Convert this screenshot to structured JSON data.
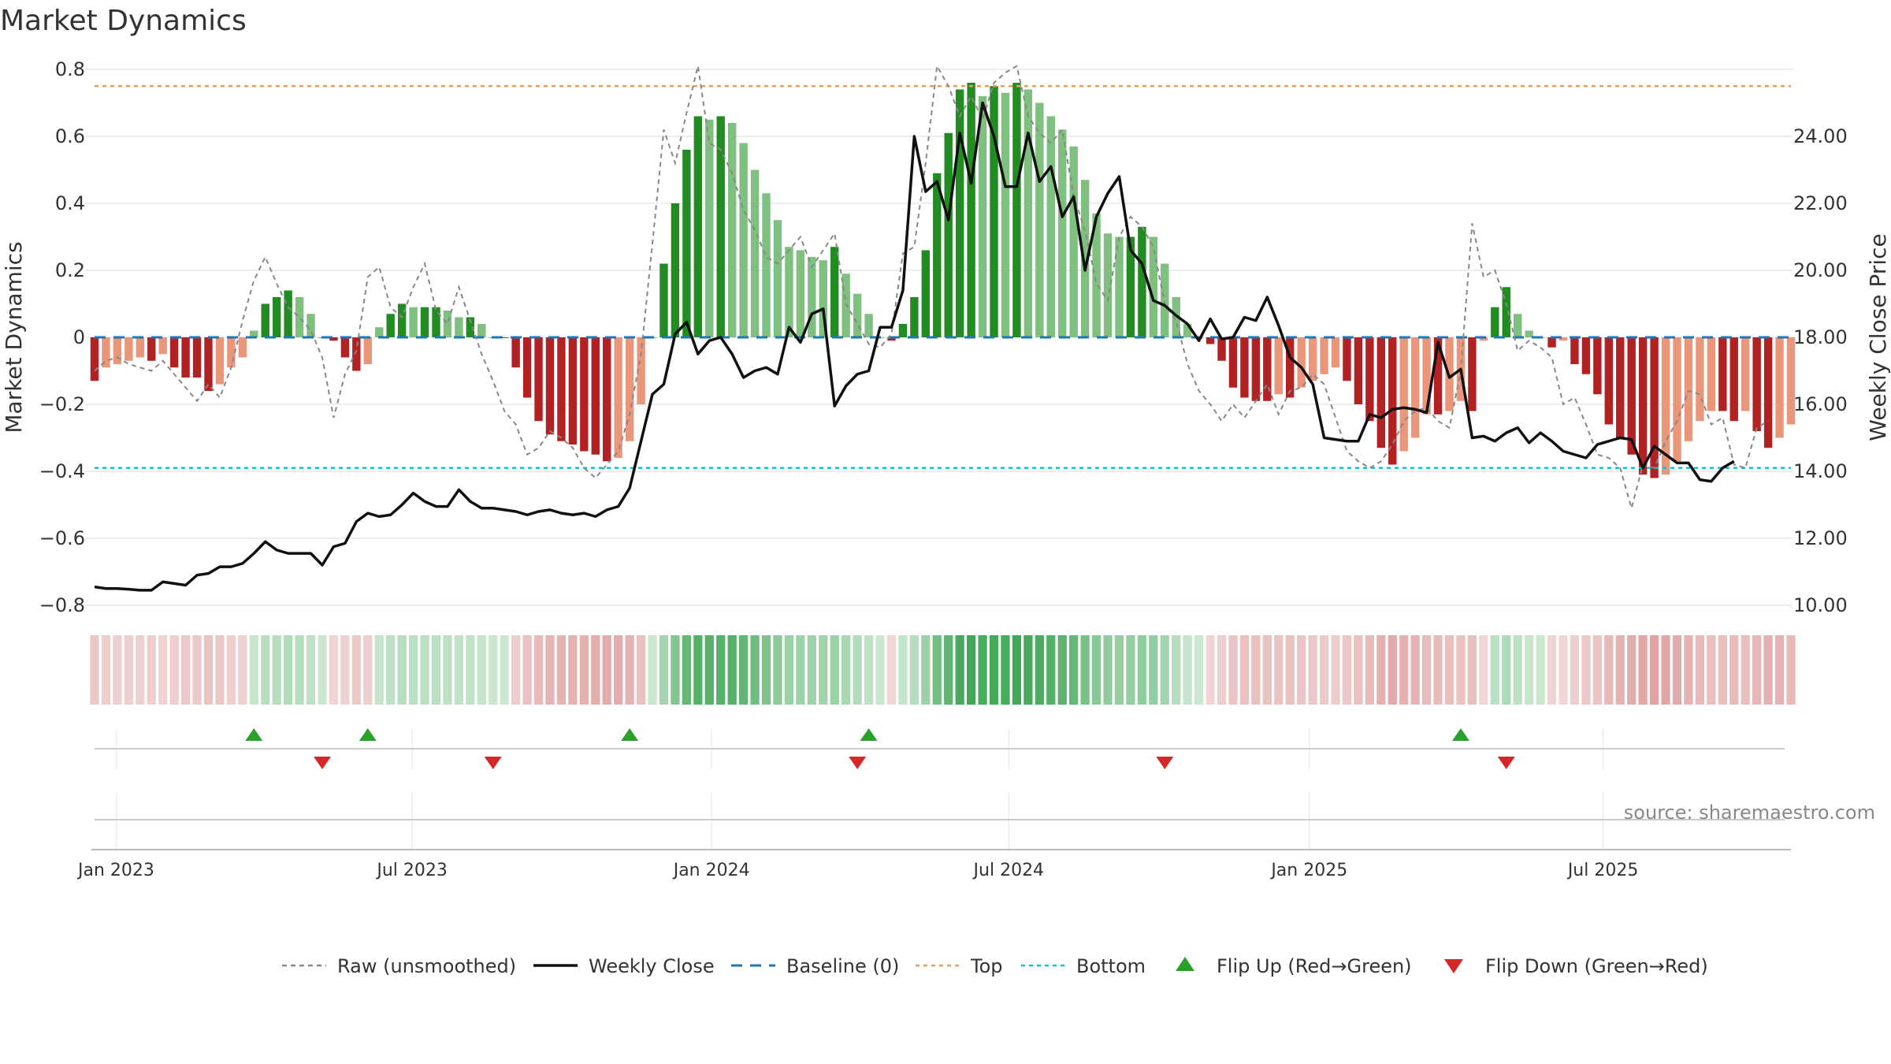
{
  "chart_data": {
    "type": "bar",
    "title": "Market Dynamics",
    "ylabel_left": "Market Dynamics",
    "ylabel_right": "Weekly Close Price",
    "ylim_left": [
      -0.8,
      0.8
    ],
    "ylim_right": [
      10,
      26
    ],
    "yticks_left": [
      -0.8,
      -0.6,
      -0.4,
      -0.2,
      0,
      0.2,
      0.4,
      0.6,
      0.8
    ],
    "ytick_labels_left": [
      "−0.8",
      "−0.6",
      "−0.4",
      "−0.2",
      "0",
      "0.2",
      "0.4",
      "0.6",
      "0.8"
    ],
    "yticks_right": [
      10,
      12,
      14,
      16,
      18,
      20,
      22,
      24
    ],
    "ytick_labels_right": [
      "10.00",
      "12.00",
      "14.00",
      "16.00",
      "18.00",
      "20.00",
      "22.00",
      "24.00"
    ],
    "x_start": "2022-12-19",
    "x_tick_labels": [
      "Jan 2023",
      "Jul 2023",
      "Jan 2024",
      "Jul 2024",
      "Jan 2025",
      "Jul 2025"
    ],
    "x_tick_weeks": [
      1.9,
      27.9,
      54.2,
      80.3,
      106.7,
      132.5
    ],
    "top_level": 0.75,
    "bottom_level": -0.39,
    "baseline": 0,
    "grid": true,
    "legend_position": "bottom-center",
    "source": "source: sharemaestro.com",
    "colors": {
      "strong_green": "#228b22",
      "light_green": "#7fbf7f",
      "strong_red": "#b22222",
      "light_red": "#e9967a",
      "raw": "#888888",
      "close": "#111111",
      "baseline": "#1f77b4",
      "top": "#e0a060",
      "bottom": "#17becf",
      "flip_up": "#2ca02c",
      "flip_down": "#d62728"
    },
    "series": [
      {
        "name": "Market Dynamics",
        "values": [
          -0.13,
          -0.09,
          -0.08,
          -0.07,
          -0.06,
          -0.07,
          -0.05,
          -0.09,
          -0.12,
          -0.12,
          -0.16,
          -0.14,
          -0.09,
          -0.06,
          0.02,
          0.1,
          0.12,
          0.14,
          0.12,
          0.07,
          0,
          -0.01,
          -0.06,
          -0.1,
          -0.08,
          0.03,
          0.07,
          0.1,
          0.09,
          0.09,
          0.09,
          0.08,
          0.06,
          0.06,
          0.04,
          0,
          0,
          -0.09,
          -0.18,
          -0.25,
          -0.29,
          -0.31,
          -0.32,
          -0.34,
          -0.35,
          -0.37,
          -0.36,
          -0.31,
          -0.2,
          0,
          0.22,
          0.4,
          0.56,
          0.66,
          0.65,
          0.66,
          0.64,
          0.58,
          0.5,
          0.43,
          0.35,
          0.27,
          0.26,
          0.24,
          0.23,
          0.27,
          0.19,
          0.13,
          0.07,
          0,
          -0.01,
          0.04,
          0.12,
          0.26,
          0.49,
          0.61,
          0.74,
          0.76,
          0.72,
          0.75,
          0.73,
          0.76,
          0.74,
          0.7,
          0.66,
          0.62,
          0.57,
          0.47,
          0.37,
          0.31,
          0.3,
          0.3,
          0.33,
          0.3,
          0.22,
          0.12,
          0.04,
          0,
          -0.02,
          -0.07,
          -0.15,
          -0.18,
          -0.19,
          -0.19,
          -0.17,
          -0.18,
          -0.15,
          -0.13,
          -0.11,
          -0.09,
          -0.13,
          -0.2,
          -0.25,
          -0.33,
          -0.38,
          -0.34,
          -0.3,
          -0.23,
          -0.23,
          -0.22,
          -0.19,
          -0.22,
          -0.01,
          0.09,
          0.15,
          0.07,
          0.02,
          0,
          -0.03,
          -0.01,
          -0.08,
          -0.11,
          -0.17,
          -0.26,
          -0.3,
          -0.35,
          -0.41,
          -0.42,
          -0.41,
          -0.37,
          -0.31,
          -0.25,
          -0.22,
          -0.22,
          -0.25,
          -0.22,
          -0.28,
          -0.33,
          -0.3,
          -0.26
        ]
      },
      {
        "name": "Raw (unsmoothed)",
        "values": [
          -0.1,
          -0.07,
          -0.06,
          -0.08,
          -0.09,
          -0.1,
          -0.07,
          -0.11,
          -0.15,
          -0.19,
          -0.14,
          -0.18,
          -0.09,
          0.05,
          0.17,
          0.24,
          0.16,
          0.09,
          0.06,
          0.02,
          -0.06,
          -0.24,
          -0.11,
          -0.04,
          0.18,
          0.21,
          0.09,
          0.06,
          0.15,
          0.22,
          0.08,
          0.04,
          0.15,
          0.05,
          -0.05,
          -0.13,
          -0.22,
          -0.26,
          -0.35,
          -0.33,
          -0.28,
          -0.3,
          -0.33,
          -0.39,
          -0.42,
          -0.38,
          -0.34,
          -0.23,
          -0.05,
          0.28,
          0.62,
          0.52,
          0.67,
          0.81,
          0.58,
          0.56,
          0.49,
          0.38,
          0.32,
          0.24,
          0.22,
          0.26,
          0.3,
          0.21,
          0.26,
          0.31,
          0.1,
          0.04,
          -0.02,
          -0.03,
          0.01,
          0.25,
          0.27,
          0.52,
          0.81,
          0.75,
          0.66,
          0.72,
          0.65,
          0.76,
          0.79,
          0.81,
          0.66,
          0.61,
          0.58,
          0.62,
          0.42,
          0.32,
          0.16,
          0.11,
          0.3,
          0.36,
          0.33,
          0.27,
          0.1,
          0.05,
          -0.08,
          -0.16,
          -0.2,
          -0.25,
          -0.2,
          -0.24,
          -0.19,
          -0.14,
          -0.23,
          -0.16,
          -0.15,
          -0.11,
          -0.14,
          -0.24,
          -0.34,
          -0.37,
          -0.39,
          -0.37,
          -0.32,
          -0.25,
          -0.22,
          -0.21,
          -0.25,
          -0.27,
          -0.1,
          0.34,
          0.18,
          0.2,
          0.1,
          -0.04,
          -0.01,
          -0.03,
          -0.06,
          -0.2,
          -0.18,
          -0.26,
          -0.35,
          -0.36,
          -0.39,
          -0.51,
          -0.38,
          -0.39,
          -0.31,
          -0.25,
          -0.16,
          -0.17,
          -0.26,
          -0.24,
          -0.38,
          -0.39,
          -0.27,
          -0.25
        ]
      },
      {
        "name": "Weekly Close",
        "values": [
          10.55,
          10.5,
          10.5,
          10.48,
          10.45,
          10.45,
          10.7,
          10.65,
          10.6,
          10.9,
          10.95,
          11.15,
          11.15,
          11.25,
          11.55,
          11.9,
          11.65,
          11.55,
          11.55,
          11.55,
          11.2,
          11.75,
          11.85,
          12.5,
          12.75,
          12.65,
          12.7,
          13.0,
          13.35,
          13.1,
          12.95,
          12.95,
          13.45,
          13.1,
          12.9,
          12.9,
          12.85,
          12.8,
          12.7,
          12.8,
          12.85,
          12.75,
          12.7,
          12.75,
          12.65,
          12.85,
          12.95,
          13.5,
          14.9,
          16.3,
          16.6,
          18.1,
          18.45,
          17.5,
          17.9,
          18.0,
          17.5,
          16.8,
          17.0,
          17.1,
          16.9,
          18.3,
          17.85,
          18.7,
          18.85,
          15.95,
          16.55,
          16.9,
          17.0,
          18.3,
          18.3,
          19.4,
          24.0,
          22.35,
          22.65,
          21.5,
          24.1,
          22.6,
          25.0,
          24.0,
          22.5,
          22.5,
          24.1,
          22.65,
          23.1,
          21.6,
          22.2,
          20.0,
          21.6,
          22.3,
          22.8,
          20.6,
          20.2,
          19.1,
          18.95,
          18.65,
          18.4,
          17.9,
          18.55,
          17.95,
          18.0,
          18.6,
          18.5,
          19.2,
          18.35,
          17.4,
          17.1,
          16.6,
          15.0,
          14.95,
          14.9,
          14.9,
          15.7,
          15.6,
          15.85,
          15.9,
          15.85,
          15.75,
          17.85,
          16.8,
          17.05,
          15.0,
          15.05,
          14.9,
          15.15,
          15.3,
          14.85,
          15.15,
          14.9,
          14.6,
          14.5,
          14.4,
          14.8,
          14.9,
          15.0,
          14.95,
          14.1,
          14.75,
          14.5,
          14.25,
          14.25,
          13.75,
          13.7,
          14.1,
          14.3
        ]
      }
    ],
    "regime_weeks_lighter": [],
    "flip_up_weeks": [
      14,
      24,
      47,
      68,
      120
    ],
    "flip_down_weeks": [
      20,
      35,
      67,
      94,
      124
    ],
    "legend": [
      {
        "key": "raw",
        "label": "Raw (unsmoothed)"
      },
      {
        "key": "close",
        "label": "Weekly Close"
      },
      {
        "key": "baseline",
        "label": "Baseline (0)"
      },
      {
        "key": "top",
        "label": "Top"
      },
      {
        "key": "bottom",
        "label": "Bottom"
      },
      {
        "key": "flip_up",
        "label": "Flip Up (Red→Green)"
      },
      {
        "key": "flip_down",
        "label": "Flip Down (Green→Red)"
      }
    ]
  }
}
